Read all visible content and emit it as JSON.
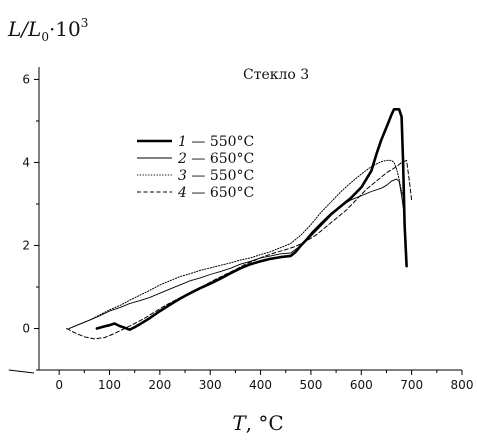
{
  "chart_data": {
    "type": "line",
    "title": "",
    "ylabel_parts": {
      "L": "L",
      "slash": "/",
      "L0_base": "L",
      "L0_sub": "0",
      "mult": "·10",
      "exp": "3"
    },
    "xlabel_parts": {
      "T": "T",
      "unit": ", °C"
    },
    "annotation": "Стекло 3",
    "xlim": [
      -40,
      800
    ],
    "ylim": [
      -1,
      6.3
    ],
    "xticks": [
      0,
      100,
      200,
      300,
      400,
      500,
      600,
      700,
      800
    ],
    "xtick_labels": [
      "0",
      "100",
      "200",
      "300",
      "400",
      "500",
      "600",
      "700",
      "800"
    ],
    "yticks": [
      0,
      2,
      4,
      6
    ],
    "ytick_labels": [
      "0",
      "2",
      "4",
      "6"
    ],
    "legend_placement": "upper-left",
    "series": [
      {
        "num": "1",
        "dash": " — ",
        "temp": "550°C",
        "style": "thick-solid",
        "color": "#000000",
        "x": [
          75,
          90,
          100,
          110,
          120,
          130,
          140,
          150,
          160,
          180,
          200,
          220,
          240,
          260,
          280,
          300,
          320,
          340,
          360,
          380,
          400,
          420,
          440,
          460,
          470,
          480,
          500,
          520,
          540,
          560,
          580,
          600,
          620,
          630,
          640,
          650,
          660,
          665,
          675,
          680,
          683,
          686,
          690
        ],
        "y": [
          0.0,
          0.05,
          0.08,
          0.12,
          0.06,
          0.02,
          -0.03,
          0.03,
          0.1,
          0.25,
          0.42,
          0.57,
          0.72,
          0.85,
          0.97,
          1.08,
          1.2,
          1.33,
          1.45,
          1.55,
          1.62,
          1.68,
          1.72,
          1.75,
          1.85,
          2.0,
          2.25,
          2.5,
          2.75,
          2.95,
          3.15,
          3.4,
          3.8,
          4.2,
          4.55,
          4.85,
          5.15,
          5.28,
          5.28,
          5.1,
          4.0,
          2.5,
          1.5
        ]
      },
      {
        "num": "2",
        "dash": " — ",
        "temp": "650°C",
        "style": "thin-solid",
        "color": "#000000",
        "x": [
          20,
          40,
          60,
          80,
          100,
          120,
          140,
          160,
          180,
          200,
          220,
          240,
          260,
          280,
          300,
          320,
          340,
          360,
          380,
          400,
          420,
          440,
          460,
          480,
          500,
          520,
          540,
          560,
          580,
          600,
          620,
          640,
          650,
          660,
          670,
          675,
          680,
          685
        ],
        "y": [
          0.0,
          0.1,
          0.2,
          0.3,
          0.42,
          0.5,
          0.6,
          0.67,
          0.75,
          0.85,
          0.95,
          1.05,
          1.15,
          1.22,
          1.3,
          1.37,
          1.45,
          1.55,
          1.62,
          1.7,
          1.75,
          1.8,
          1.82,
          2.0,
          2.3,
          2.55,
          2.78,
          2.95,
          3.1,
          3.2,
          3.3,
          3.38,
          3.45,
          3.55,
          3.6,
          3.55,
          3.2,
          2.75
        ]
      },
      {
        "num": "3",
        "dash": " — ",
        "temp": "550°C",
        "style": "dotted",
        "color": "#000000",
        "x": [
          20,
          40,
          60,
          80,
          100,
          120,
          140,
          160,
          180,
          200,
          220,
          240,
          260,
          280,
          300,
          320,
          340,
          360,
          380,
          400,
          420,
          440,
          460,
          480,
          500,
          520,
          540,
          560,
          580,
          600,
          620,
          640,
          650,
          660,
          665,
          670,
          675,
          680,
          685
        ],
        "y": [
          0.0,
          0.1,
          0.2,
          0.32,
          0.45,
          0.55,
          0.68,
          0.8,
          0.92,
          1.05,
          1.15,
          1.25,
          1.32,
          1.4,
          1.46,
          1.52,
          1.58,
          1.65,
          1.7,
          1.78,
          1.85,
          1.95,
          2.05,
          2.25,
          2.5,
          2.8,
          3.05,
          3.3,
          3.52,
          3.72,
          3.9,
          4.02,
          4.05,
          4.05,
          4.0,
          3.85,
          3.6,
          3.3,
          3.1
        ]
      },
      {
        "num": "4",
        "dash": " — ",
        "temp": "650°C",
        "style": "dashed",
        "color": "#000000",
        "x": [
          15,
          30,
          50,
          70,
          90,
          110,
          130,
          150,
          170,
          190,
          210,
          230,
          250,
          270,
          290,
          310,
          330,
          350,
          370,
          390,
          410,
          430,
          450,
          470,
          490,
          510,
          530,
          550,
          570,
          590,
          610,
          630,
          650,
          670,
          680,
          690,
          695,
          700
        ],
        "y": [
          0.0,
          -0.1,
          -0.2,
          -0.25,
          -0.22,
          -0.12,
          0.0,
          0.12,
          0.25,
          0.4,
          0.55,
          0.68,
          0.8,
          0.92,
          1.05,
          1.18,
          1.3,
          1.42,
          1.55,
          1.65,
          1.75,
          1.83,
          1.9,
          1.98,
          2.1,
          2.25,
          2.45,
          2.65,
          2.85,
          3.1,
          3.35,
          3.55,
          3.75,
          3.9,
          4.0,
          4.05,
          3.6,
          3.1
        ]
      }
    ]
  }
}
